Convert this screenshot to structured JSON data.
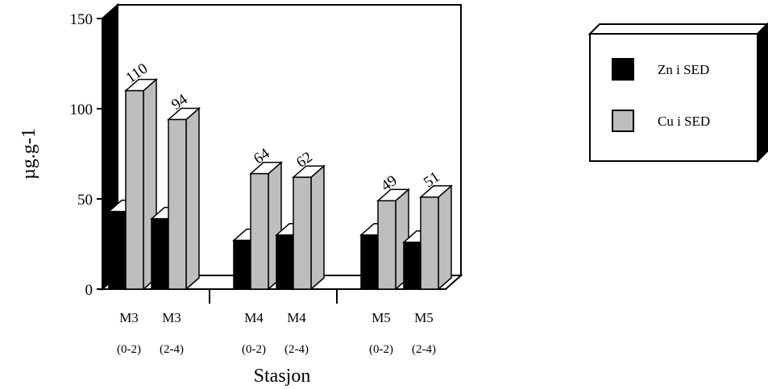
{
  "chart_data": {
    "type": "bar",
    "title": "",
    "xlabel": "Stasjon",
    "ylabel": "µg.g-1",
    "ylim": [
      0,
      150
    ],
    "yticks": [
      "0",
      "50",
      "100",
      "150"
    ],
    "groups": [
      {
        "stations": [
          {
            "name": "M3",
            "sub": "(0-2)"
          },
          {
            "name": "M3",
            "sub": "(2-4)"
          }
        ]
      },
      {
        "stations": [
          {
            "name": "M4",
            "sub": "(0-2)"
          },
          {
            "name": "M4",
            "sub": "(2-4)"
          }
        ]
      },
      {
        "stations": [
          {
            "name": "M5",
            "sub": "(0-2)"
          },
          {
            "name": "M5",
            "sub": "(2-4)"
          }
        ]
      }
    ],
    "series": [
      {
        "name": "Zn i SED",
        "color": "#000000",
        "values": [
          43,
          39,
          27,
          30,
          30,
          26
        ],
        "data_labels": []
      },
      {
        "name": "Cu i SED",
        "color": "#bdbdbd",
        "values": [
          110,
          94,
          64,
          62,
          49,
          51
        ],
        "data_labels": [
          "110",
          "94",
          "64",
          "62",
          "49",
          "51"
        ]
      }
    ],
    "legend_position": "top-right",
    "grid": false,
    "style": "3d"
  }
}
